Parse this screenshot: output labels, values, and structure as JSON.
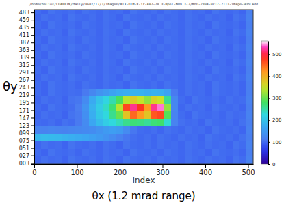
{
  "chart_data": {
    "type": "heatmap",
    "title": "/home/helios/LUAFFIN/daily/0607/17/3/images/BTX-DTM-F-ir-A02-28.3-Hpel-ND9.3-2/MnO-2304-0717-2113-image-9UbLadd",
    "xlabel": "Index",
    "xlabel_caption": "θx (1.2 mrad range)",
    "ylabel": "θy",
    "xlim": [
      0,
      512
    ],
    "xticks": [
      0,
      100,
      200,
      300,
      400,
      500
    ],
    "ylim": [
      0,
      492
    ],
    "yticks": [
      {
        "value": 3,
        "label": "003"
      },
      {
        "value": 27,
        "label": "027"
      },
      {
        "value": 51,
        "label": "051"
      },
      {
        "value": 75,
        "label": "075"
      },
      {
        "value": 99,
        "label": "099"
      },
      {
        "value": 123,
        "label": "123"
      },
      {
        "value": 147,
        "label": "147"
      },
      {
        "value": 171,
        "label": "171"
      },
      {
        "value": 195,
        "label": "195"
      },
      {
        "value": 219,
        "label": "219"
      },
      {
        "value": 243,
        "label": "243"
      },
      {
        "value": 267,
        "label": "267"
      },
      {
        "value": 291,
        "label": "291"
      },
      {
        "value": 315,
        "label": "315"
      },
      {
        "value": 339,
        "label": "339"
      },
      {
        "value": 363,
        "label": "363"
      },
      {
        "value": 387,
        "label": "387"
      },
      {
        "value": 411,
        "label": "411"
      },
      {
        "value": 435,
        "label": "435"
      },
      {
        "value": 459,
        "label": "459"
      },
      {
        "value": 483,
        "label": "483"
      }
    ],
    "xbins": [
      0,
      16,
      32,
      48,
      64,
      80,
      96,
      112,
      128,
      144,
      160,
      176,
      192,
      208,
      224,
      240,
      256,
      272,
      288,
      304,
      320,
      336,
      352,
      368,
      384,
      400,
      416,
      432,
      448,
      464,
      480,
      496,
      512
    ],
    "ybins": [
      0,
      24,
      48,
      72,
      96,
      120,
      144,
      168,
      192,
      216,
      240,
      264,
      288,
      312,
      336,
      360,
      384,
      408,
      432,
      456,
      480,
      504
    ],
    "z": [
      [
        97,
        103,
        99,
        101,
        95,
        105,
        100,
        98,
        102,
        96,
        104,
        100,
        95,
        105,
        100,
        98,
        102,
        97,
        103,
        99,
        101,
        96,
        104,
        100,
        97,
        103,
        99,
        101,
        95,
        105,
        100,
        118
      ],
      [
        100,
        95,
        105,
        100,
        98,
        102,
        96,
        104,
        100,
        97,
        103,
        99,
        101,
        95,
        105,
        100,
        98,
        102,
        96,
        104,
        100,
        97,
        103,
        99,
        101,
        95,
        105,
        100,
        98,
        102,
        96,
        115
      ],
      [
        97,
        103,
        99,
        101,
        95,
        105,
        100,
        98,
        102,
        96,
        104,
        100,
        95,
        105,
        100,
        98,
        102,
        97,
        103,
        99,
        101,
        96,
        104,
        100,
        97,
        103,
        99,
        101,
        95,
        105,
        100,
        118
      ],
      [
        185,
        190,
        188,
        185,
        180,
        175,
        170,
        165,
        158,
        150,
        140,
        130,
        118,
        108,
        102,
        98,
        102,
        96,
        104,
        100,
        97,
        103,
        99,
        101,
        95,
        105,
        100,
        98,
        102,
        96,
        104,
        115
      ],
      [
        120,
        118,
        122,
        120,
        118,
        122,
        125,
        128,
        132,
        140,
        150,
        155,
        150,
        130,
        108,
        100,
        98,
        102,
        96,
        104,
        100,
        97,
        103,
        99,
        101,
        95,
        105,
        100,
        98,
        102,
        96,
        118
      ],
      [
        100,
        98,
        102,
        96,
        104,
        100,
        110,
        130,
        165,
        190,
        210,
        225,
        240,
        260,
        270,
        265,
        255,
        270,
        275,
        230,
        120,
        103,
        99,
        101,
        95,
        105,
        100,
        98,
        102,
        96,
        104,
        115
      ],
      [
        97,
        103,
        99,
        101,
        95,
        105,
        110,
        135,
        175,
        205,
        225,
        260,
        300,
        380,
        450,
        420,
        380,
        460,
        470,
        290,
        120,
        100,
        95,
        105,
        100,
        98,
        102,
        97,
        103,
        99,
        101,
        118
      ],
      [
        100,
        95,
        105,
        100,
        98,
        102,
        112,
        140,
        180,
        210,
        235,
        270,
        340,
        470,
        520,
        480,
        420,
        520,
        540,
        320,
        125,
        97,
        103,
        99,
        101,
        95,
        105,
        100,
        98,
        102,
        96,
        115
      ],
      [
        97,
        103,
        99,
        101,
        95,
        105,
        108,
        130,
        170,
        200,
        220,
        245,
        285,
        340,
        370,
        345,
        320,
        365,
        350,
        260,
        125,
        100,
        95,
        105,
        100,
        98,
        102,
        97,
        103,
        99,
        101,
        118
      ],
      [
        100,
        95,
        105,
        100,
        98,
        102,
        100,
        110,
        125,
        140,
        150,
        160,
        170,
        175,
        180,
        178,
        172,
        178,
        175,
        160,
        110,
        97,
        103,
        99,
        101,
        95,
        105,
        100,
        98,
        102,
        96,
        115
      ],
      [
        100,
        95,
        105,
        100,
        98,
        102,
        96,
        104,
        100,
        97,
        103,
        99,
        101,
        95,
        105,
        100,
        98,
        102,
        96,
        104,
        100,
        97,
        103,
        99,
        101,
        95,
        105,
        100,
        98,
        102,
        96,
        115
      ],
      [
        97,
        103,
        99,
        101,
        95,
        105,
        100,
        98,
        102,
        96,
        104,
        100,
        95,
        105,
        100,
        98,
        102,
        97,
        103,
        99,
        101,
        96,
        104,
        100,
        97,
        103,
        99,
        101,
        95,
        105,
        100,
        118
      ],
      [
        100,
        95,
        105,
        100,
        98,
        102,
        96,
        104,
        100,
        97,
        103,
        99,
        101,
        95,
        105,
        100,
        98,
        102,
        96,
        104,
        100,
        97,
        103,
        99,
        101,
        95,
        105,
        100,
        98,
        102,
        96,
        115
      ],
      [
        97,
        103,
        99,
        101,
        95,
        105,
        100,
        98,
        102,
        96,
        104,
        100,
        95,
        105,
        100,
        98,
        102,
        97,
        103,
        99,
        101,
        96,
        104,
        100,
        97,
        103,
        99,
        101,
        95,
        105,
        100,
        118
      ],
      [
        100,
        95,
        105,
        100,
        98,
        102,
        96,
        104,
        100,
        97,
        103,
        99,
        101,
        95,
        105,
        100,
        98,
        102,
        96,
        104,
        100,
        97,
        103,
        99,
        101,
        95,
        105,
        100,
        98,
        102,
        96,
        115
      ],
      [
        97,
        103,
        99,
        101,
        95,
        105,
        100,
        98,
        102,
        96,
        104,
        100,
        95,
        105,
        100,
        98,
        102,
        97,
        103,
        99,
        101,
        96,
        104,
        100,
        97,
        103,
        99,
        101,
        95,
        105,
        100,
        118
      ],
      [
        100,
        95,
        105,
        100,
        98,
        102,
        96,
        104,
        100,
        97,
        103,
        99,
        101,
        95,
        105,
        100,
        98,
        102,
        96,
        104,
        100,
        97,
        103,
        99,
        101,
        95,
        105,
        100,
        98,
        102,
        96,
        115
      ],
      [
        97,
        103,
        99,
        101,
        95,
        105,
        100,
        98,
        102,
        96,
        104,
        100,
        95,
        105,
        100,
        98,
        102,
        97,
        103,
        99,
        101,
        96,
        104,
        100,
        97,
        103,
        99,
        101,
        95,
        105,
        100,
        118
      ],
      [
        100,
        95,
        105,
        100,
        98,
        102,
        96,
        104,
        100,
        97,
        103,
        99,
        101,
        95,
        105,
        100,
        98,
        102,
        96,
        104,
        100,
        97,
        103,
        99,
        101,
        95,
        105,
        100,
        98,
        102,
        96,
        115
      ],
      [
        97,
        103,
        99,
        101,
        95,
        105,
        100,
        98,
        102,
        96,
        104,
        100,
        95,
        105,
        100,
        98,
        102,
        97,
        103,
        99,
        101,
        96,
        104,
        100,
        97,
        103,
        99,
        101,
        95,
        105,
        100,
        118
      ],
      [
        100,
        95,
        105,
        100,
        98,
        102,
        96,
        104,
        100,
        97,
        103,
        99,
        101,
        95,
        105,
        100,
        98,
        102,
        96,
        104,
        100,
        97,
        103,
        99,
        101,
        95,
        105,
        100,
        98,
        102,
        96,
        115
      ]
    ],
    "colorbar": {
      "range": [
        0,
        560
      ],
      "ticks": [
        0,
        100,
        200,
        300,
        400,
        500
      ]
    }
  }
}
